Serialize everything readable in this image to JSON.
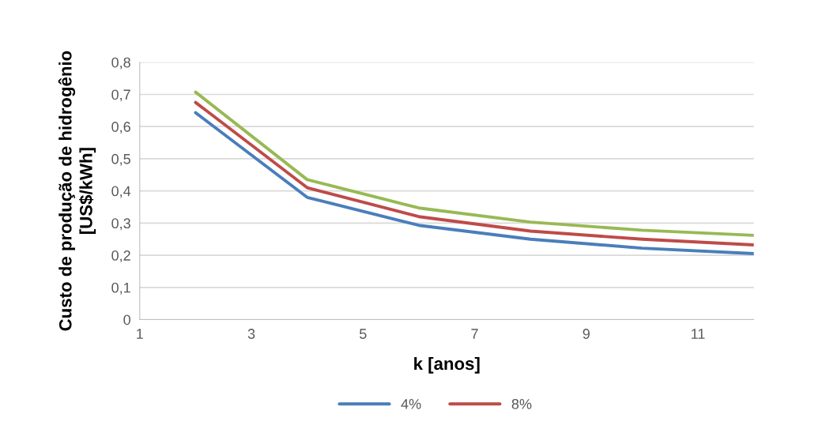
{
  "chart_data": {
    "type": "line",
    "xlabel": "k [anos]",
    "ylabel": "Custo de produção de hidrogênio\n[US$/kWh]",
    "x": [
      2,
      4,
      6,
      8,
      10,
      12
    ],
    "series": [
      {
        "name": "4%",
        "color": "#4a7ebb",
        "values": [
          0.643,
          0.38,
          0.293,
          0.25,
          0.222,
          0.205
        ]
      },
      {
        "name": "8%",
        "color": "#be4b48",
        "values": [
          0.675,
          0.41,
          0.32,
          0.275,
          0.25,
          0.232
        ]
      },
      {
        "color": "#98b954",
        "values": [
          0.707,
          0.435,
          0.347,
          0.303,
          0.278,
          0.262
        ]
      }
    ],
    "xlim": [
      1,
      12
    ],
    "xticks": [
      1,
      3,
      5,
      7,
      9,
      11
    ],
    "ylim": [
      0,
      0.8
    ],
    "yticks": [
      {
        "value": 0,
        "label": "0"
      },
      {
        "value": 0.1,
        "label": "0,1"
      },
      {
        "value": 0.2,
        "label": "0,2"
      },
      {
        "value": 0.3,
        "label": "0,3"
      },
      {
        "value": 0.4,
        "label": "0,4"
      },
      {
        "value": 0.5,
        "label": "0,5"
      },
      {
        "value": 0.6,
        "label": "0,6"
      },
      {
        "value": 0.7,
        "label": "0,7"
      },
      {
        "value": 0.8,
        "label": "0,8"
      }
    ],
    "grid": "y",
    "legend": "bottom",
    "marker": "none",
    "line_style": "solid"
  }
}
